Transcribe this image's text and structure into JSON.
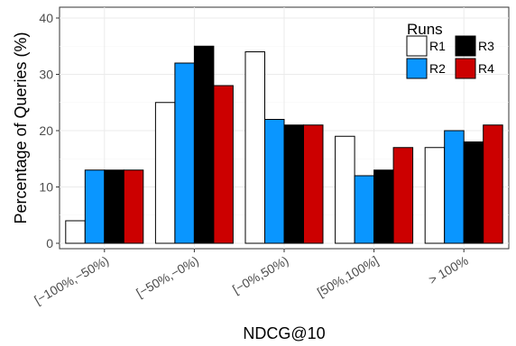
{
  "chart_data": {
    "type": "bar",
    "categories": [
      "[−100%,−50%)",
      "[−50%,−0%)",
      "[−0%,50%)",
      "[50%,100%]",
      "> 100%"
    ],
    "series": [
      {
        "name": "R1",
        "color": "#ffffff",
        "values": [
          4,
          25,
          34,
          19,
          17
        ]
      },
      {
        "name": "R2",
        "color": "#0a96ff",
        "values": [
          13,
          32,
          22,
          12,
          20
        ]
      },
      {
        "name": "R3",
        "color": "#000000",
        "values": [
          13,
          35,
          21,
          13,
          18
        ]
      },
      {
        "name": "R4",
        "color": "#cc0000",
        "values": [
          13,
          28,
          21,
          17,
          21
        ]
      }
    ],
    "xlabel": "NDCG@10",
    "ylabel": "Percentage of Queries (%)",
    "ylim": [
      0,
      40
    ],
    "yticks": [
      0,
      10,
      20,
      30,
      40
    ],
    "grid": true,
    "legend": {
      "title": "Runs",
      "placement": "top-right"
    }
  }
}
